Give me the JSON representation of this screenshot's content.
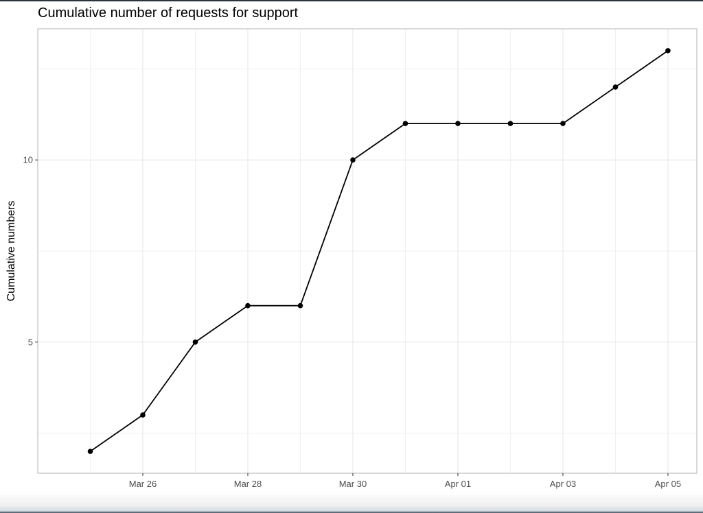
{
  "chart_data": {
    "type": "line",
    "title": "Cumulative number of requests for support",
    "xlabel": "",
    "ylabel": "Cumulative numbers",
    "x": [
      "2020-03-25",
      "2020-03-26",
      "2020-03-27",
      "2020-03-28",
      "2020-03-29",
      "2020-03-30",
      "2020-03-31",
      "2020-04-01",
      "2020-04-02",
      "2020-04-03",
      "2020-04-04",
      "2020-04-05"
    ],
    "series": [
      {
        "values": [
          2,
          3,
          5,
          6,
          6,
          10,
          11,
          11,
          11,
          11,
          12,
          13
        ]
      }
    ],
    "x_ticks": [
      "Mar 26",
      "Mar 28",
      "Mar 30",
      "Apr 01",
      "Apr 03",
      "Apr 05"
    ],
    "x_tick_dates": [
      "2020-03-26",
      "2020-03-28",
      "2020-03-30",
      "2020-04-01",
      "2020-04-03",
      "2020-04-05"
    ],
    "y_ticks": [
      5,
      10
    ],
    "xlim": [
      "2020-03-24",
      "2020-04-05"
    ],
    "ylim": [
      1.4,
      13.6
    ],
    "grid": true,
    "line_color": "#000000",
    "point_color": "#000000",
    "grid_color": "#e6e6e6",
    "panel_border_color": "#b3b3b3"
  }
}
